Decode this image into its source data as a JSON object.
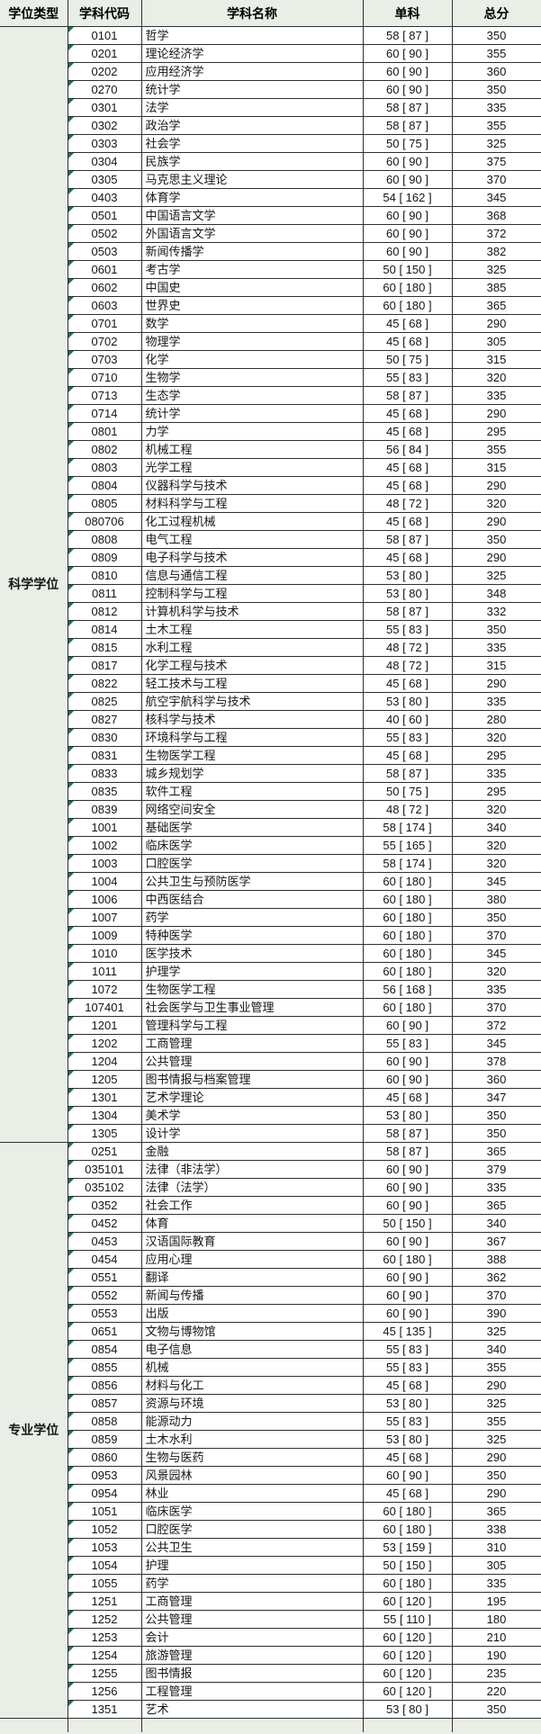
{
  "colors": {
    "page_background": "#e9eee7",
    "cell_background": "#ffffff",
    "border": "#2f2f2f",
    "error_marker_green": "#1e7145"
  },
  "table": {
    "columns": {
      "degree_type": "学位类型",
      "subject_code": "学科代码",
      "subject_name": "学科名称",
      "single_subject": "单科",
      "total_score": "总分"
    },
    "sections": [
      {
        "degree_type": "科学学位",
        "rows": [
          {
            "code": "0101",
            "name": "哲学",
            "single": 58,
            "bracket": 87,
            "total": 350
          },
          {
            "code": "0201",
            "name": "理论经济学",
            "single": 60,
            "bracket": 90,
            "total": 355
          },
          {
            "code": "0202",
            "name": "应用经济学",
            "single": 60,
            "bracket": 90,
            "total": 360
          },
          {
            "code": "0270",
            "name": "统计学",
            "single": 60,
            "bracket": 90,
            "total": 350
          },
          {
            "code": "0301",
            "name": "法学",
            "single": 58,
            "bracket": 87,
            "total": 335
          },
          {
            "code": "0302",
            "name": "政治学",
            "single": 58,
            "bracket": 87,
            "total": 355
          },
          {
            "code": "0303",
            "name": "社会学",
            "single": 50,
            "bracket": 75,
            "total": 325
          },
          {
            "code": "0304",
            "name": "民族学",
            "single": 60,
            "bracket": 90,
            "total": 375
          },
          {
            "code": "0305",
            "name": "马克思主义理论",
            "single": 60,
            "bracket": 90,
            "total": 370
          },
          {
            "code": "0403",
            "name": "体育学",
            "single": 54,
            "bracket": 162,
            "total": 345
          },
          {
            "code": "0501",
            "name": "中国语言文学",
            "single": 60,
            "bracket": 90,
            "total": 368
          },
          {
            "code": "0502",
            "name": "外国语言文学",
            "single": 60,
            "bracket": 90,
            "total": 372
          },
          {
            "code": "0503",
            "name": "新闻传播学",
            "single": 60,
            "bracket": 90,
            "total": 382
          },
          {
            "code": "0601",
            "name": "考古学",
            "single": 50,
            "bracket": 150,
            "total": 325
          },
          {
            "code": "0602",
            "name": "中国史",
            "single": 60,
            "bracket": 180,
            "total": 385
          },
          {
            "code": "0603",
            "name": "世界史",
            "single": 60,
            "bracket": 180,
            "total": 365
          },
          {
            "code": "0701",
            "name": "数学",
            "single": 45,
            "bracket": 68,
            "total": 290
          },
          {
            "code": "0702",
            "name": "物理学",
            "single": 45,
            "bracket": 68,
            "total": 305
          },
          {
            "code": "0703",
            "name": "化学",
            "single": 50,
            "bracket": 75,
            "total": 315
          },
          {
            "code": "0710",
            "name": "生物学",
            "single": 55,
            "bracket": 83,
            "total": 320
          },
          {
            "code": "0713",
            "name": "生态学",
            "single": 58,
            "bracket": 87,
            "total": 335
          },
          {
            "code": "0714",
            "name": "统计学",
            "single": 45,
            "bracket": 68,
            "total": 290
          },
          {
            "code": "0801",
            "name": "力学",
            "single": 45,
            "bracket": 68,
            "total": 295
          },
          {
            "code": "0802",
            "name": "机械工程",
            "single": 56,
            "bracket": 84,
            "total": 355
          },
          {
            "code": "0803",
            "name": "光学工程",
            "single": 45,
            "bracket": 68,
            "total": 315
          },
          {
            "code": "0804",
            "name": "仪器科学与技术",
            "single": 45,
            "bracket": 68,
            "total": 290
          },
          {
            "code": "0805",
            "name": "材料科学与工程",
            "single": 48,
            "bracket": 72,
            "total": 320
          },
          {
            "code": "080706",
            "name": "化工过程机械",
            "single": 45,
            "bracket": 68,
            "total": 290
          },
          {
            "code": "0808",
            "name": "电气工程",
            "single": 58,
            "bracket": 87,
            "total": 350
          },
          {
            "code": "0809",
            "name": "电子科学与技术",
            "single": 45,
            "bracket": 68,
            "total": 290
          },
          {
            "code": "0810",
            "name": "信息与通信工程",
            "single": 53,
            "bracket": 80,
            "total": 325
          },
          {
            "code": "0811",
            "name": "控制科学与工程",
            "single": 53,
            "bracket": 80,
            "total": 348
          },
          {
            "code": "0812",
            "name": "计算机科学与技术",
            "single": 58,
            "bracket": 87,
            "total": 332
          },
          {
            "code": "0814",
            "name": "土木工程",
            "single": 55,
            "bracket": 83,
            "total": 350
          },
          {
            "code": "0815",
            "name": "水利工程",
            "single": 48,
            "bracket": 72,
            "total": 335
          },
          {
            "code": "0817",
            "name": "化学工程与技术",
            "single": 48,
            "bracket": 72,
            "total": 315
          },
          {
            "code": "0822",
            "name": "轻工技术与工程",
            "single": 45,
            "bracket": 68,
            "total": 290
          },
          {
            "code": "0825",
            "name": "航空宇航科学与技术",
            "single": 53,
            "bracket": 80,
            "total": 335
          },
          {
            "code": "0827",
            "name": "核科学与技术",
            "single": 40,
            "bracket": 60,
            "total": 280
          },
          {
            "code": "0830",
            "name": "环境科学与工程",
            "single": 55,
            "bracket": 83,
            "total": 320
          },
          {
            "code": "0831",
            "name": "生物医学工程",
            "single": 45,
            "bracket": 68,
            "total": 295
          },
          {
            "code": "0833",
            "name": "城乡规划学",
            "single": 58,
            "bracket": 87,
            "total": 335
          },
          {
            "code": "0835",
            "name": "软件工程",
            "single": 50,
            "bracket": 75,
            "total": 295
          },
          {
            "code": "0839",
            "name": "网络空间安全",
            "single": 48,
            "bracket": 72,
            "total": 320
          },
          {
            "code": "1001",
            "name": "基础医学",
            "single": 58,
            "bracket": 174,
            "total": 340
          },
          {
            "code": "1002",
            "name": "临床医学",
            "single": 55,
            "bracket": 165,
            "total": 320
          },
          {
            "code": "1003",
            "name": "口腔医学",
            "single": 58,
            "bracket": 174,
            "total": 320
          },
          {
            "code": "1004",
            "name": "公共卫生与预防医学",
            "single": 60,
            "bracket": 180,
            "total": 345
          },
          {
            "code": "1006",
            "name": "中西医结合",
            "single": 60,
            "bracket": 180,
            "total": 380
          },
          {
            "code": "1007",
            "name": "药学",
            "single": 60,
            "bracket": 180,
            "total": 350
          },
          {
            "code": "1009",
            "name": "特种医学",
            "single": 60,
            "bracket": 180,
            "total": 370
          },
          {
            "code": "1010",
            "name": "医学技术",
            "single": 60,
            "bracket": 180,
            "total": 345
          },
          {
            "code": "1011",
            "name": "护理学",
            "single": 60,
            "bracket": 180,
            "total": 320
          },
          {
            "code": "1072",
            "name": "生物医学工程",
            "single": 56,
            "bracket": 168,
            "total": 335
          },
          {
            "code": "107401",
            "name": "社会医学与卫生事业管理",
            "single": 60,
            "bracket": 180,
            "total": 370
          },
          {
            "code": "1201",
            "name": "管理科学与工程",
            "single": 60,
            "bracket": 90,
            "total": 372
          },
          {
            "code": "1202",
            "name": "工商管理",
            "single": 55,
            "bracket": 83,
            "total": 345
          },
          {
            "code": "1204",
            "name": "公共管理",
            "single": 60,
            "bracket": 90,
            "total": 378
          },
          {
            "code": "1205",
            "name": "图书情报与档案管理",
            "single": 60,
            "bracket": 90,
            "total": 360
          },
          {
            "code": "1301",
            "name": "艺术学理论",
            "single": 45,
            "bracket": 68,
            "total": 347
          },
          {
            "code": "1304",
            "name": "美术学",
            "single": 53,
            "bracket": 80,
            "total": 350
          },
          {
            "code": "1305",
            "name": "设计学",
            "single": 58,
            "bracket": 87,
            "total": 350
          }
        ]
      },
      {
        "degree_type": "专业学位",
        "rows": [
          {
            "code": "0251",
            "name": "金融",
            "single": 58,
            "bracket": 87,
            "total": 365
          },
          {
            "code": "035101",
            "name": "法律（非法学）",
            "single": 60,
            "bracket": 90,
            "total": 379
          },
          {
            "code": "035102",
            "name": "法律（法学）",
            "single": 60,
            "bracket": 90,
            "total": 335
          },
          {
            "code": "0352",
            "name": "社会工作",
            "single": 60,
            "bracket": 90,
            "total": 365
          },
          {
            "code": "0452",
            "name": "体育",
            "single": 50,
            "bracket": 150,
            "total": 340
          },
          {
            "code": "0453",
            "name": "汉语国际教育",
            "single": 60,
            "bracket": 90,
            "total": 367
          },
          {
            "code": "0454",
            "name": "应用心理",
            "single": 60,
            "bracket": 180,
            "total": 388
          },
          {
            "code": "0551",
            "name": "翻译",
            "single": 60,
            "bracket": 90,
            "total": 362
          },
          {
            "code": "0552",
            "name": "新闻与传播",
            "single": 60,
            "bracket": 90,
            "total": 370
          },
          {
            "code": "0553",
            "name": "出版",
            "single": 60,
            "bracket": 90,
            "total": 390
          },
          {
            "code": "0651",
            "name": "文物与博物馆",
            "single": 45,
            "bracket": 135,
            "total": 325
          },
          {
            "code": "0854",
            "name": "电子信息",
            "single": 55,
            "bracket": 83,
            "total": 340
          },
          {
            "code": "0855",
            "name": "机械",
            "single": 55,
            "bracket": 83,
            "total": 355
          },
          {
            "code": "0856",
            "name": "材料与化工",
            "single": 45,
            "bracket": 68,
            "total": 290
          },
          {
            "code": "0857",
            "name": "资源与环境",
            "single": 53,
            "bracket": 80,
            "total": 325
          },
          {
            "code": "0858",
            "name": "能源动力",
            "single": 55,
            "bracket": 83,
            "total": 355
          },
          {
            "code": "0859",
            "name": "土木水利",
            "single": 53,
            "bracket": 80,
            "total": 325
          },
          {
            "code": "0860",
            "name": "生物与医药",
            "single": 45,
            "bracket": 68,
            "total": 290
          },
          {
            "code": "0953",
            "name": "风景园林",
            "single": 60,
            "bracket": 90,
            "total": 350
          },
          {
            "code": "0954",
            "name": "林业",
            "single": 45,
            "bracket": 68,
            "total": 290
          },
          {
            "code": "1051",
            "name": "临床医学",
            "single": 60,
            "bracket": 180,
            "total": 365
          },
          {
            "code": "1052",
            "name": "口腔医学",
            "single": 60,
            "bracket": 180,
            "total": 338
          },
          {
            "code": "1053",
            "name": "公共卫生",
            "single": 53,
            "bracket": 159,
            "total": 310
          },
          {
            "code": "1054",
            "name": "护理",
            "single": 50,
            "bracket": 150,
            "total": 305
          },
          {
            "code": "1055",
            "name": "药学",
            "single": 60,
            "bracket": 180,
            "total": 335
          },
          {
            "code": "1251",
            "name": "工商管理",
            "single": 60,
            "bracket": 120,
            "total": 195
          },
          {
            "code": "1252",
            "name": "公共管理",
            "single": 55,
            "bracket": 110,
            "total": 180
          },
          {
            "code": "1253",
            "name": "会计",
            "single": 60,
            "bracket": 120,
            "total": 210
          },
          {
            "code": "1254",
            "name": "旅游管理",
            "single": 60,
            "bracket": 120,
            "total": 190
          },
          {
            "code": "1255",
            "name": "图书情报",
            "single": 60,
            "bracket": 120,
            "total": 235
          },
          {
            "code": "1256",
            "name": "工程管理",
            "single": 60,
            "bracket": 120,
            "total": 220
          },
          {
            "code": "1351",
            "name": "艺术",
            "single": 53,
            "bracket": 80,
            "total": 350
          }
        ]
      }
    ]
  }
}
